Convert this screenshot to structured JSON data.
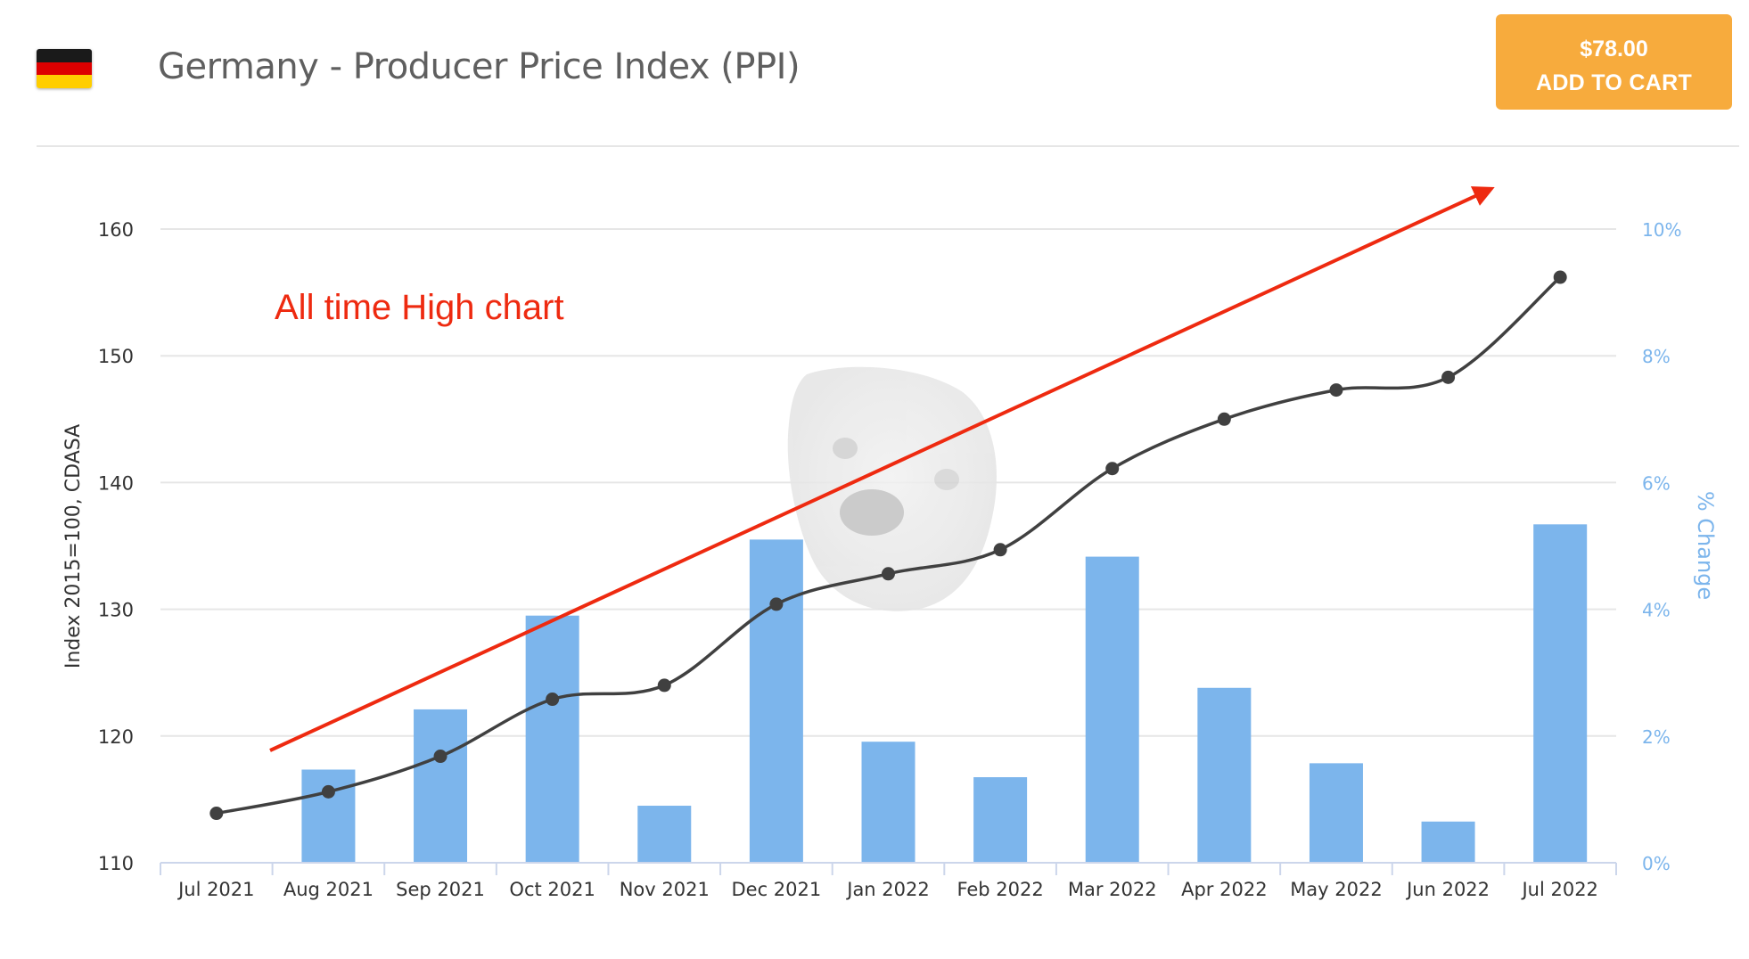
{
  "header": {
    "title": "Germany - Producer Price Index (PPI)",
    "flag_colors": [
      "#1a1a1a",
      "#dd0000",
      "#ffce00"
    ],
    "flag_icon": "germany-flag-icon"
  },
  "cart": {
    "price": "$78.00",
    "label": "ADD TO CART",
    "color": "#f7ab3d"
  },
  "annotation": {
    "text": "All time High chart",
    "color": "#ee2a10",
    "arrow": "trend-arrow-icon"
  },
  "watermark": {
    "icon": "dog-face-icon"
  },
  "chart_data": {
    "type": "bar",
    "categories": [
      "Jul 2021",
      "Aug 2021",
      "Sep 2021",
      "Oct 2021",
      "Nov 2021",
      "Dec 2021",
      "Jan 2022",
      "Feb 2022",
      "Mar 2022",
      "Apr 2022",
      "May 2022",
      "Jun 2022",
      "Jul 2022"
    ],
    "series": [
      {
        "type": "line",
        "axis": "left",
        "color": "#404040",
        "values": [
          113.9,
          115.6,
          118.4,
          122.9,
          124.0,
          130.4,
          132.8,
          134.7,
          141.1,
          145.0,
          147.3,
          148.3,
          156.2
        ]
      },
      {
        "type": "bar",
        "axis": "right",
        "color": "#7cb5ec",
        "values": [
          0,
          1.47,
          2.42,
          3.9,
          0.9,
          5.1,
          1.91,
          1.35,
          4.83,
          2.76,
          1.57,
          0.65,
          5.34
        ]
      }
    ],
    "ylabel": "Index 2015=100, CDASA",
    "y2label": "% Change",
    "ylim": [
      110,
      160
    ],
    "y2lim": [
      0,
      10
    ],
    "yticks": [
      "110",
      "120",
      "130",
      "140",
      "150",
      "160"
    ],
    "y2ticks": [
      "0%",
      "2%",
      "4%",
      "6%",
      "8%",
      "10%"
    ],
    "grid": true,
    "legend": "none"
  }
}
